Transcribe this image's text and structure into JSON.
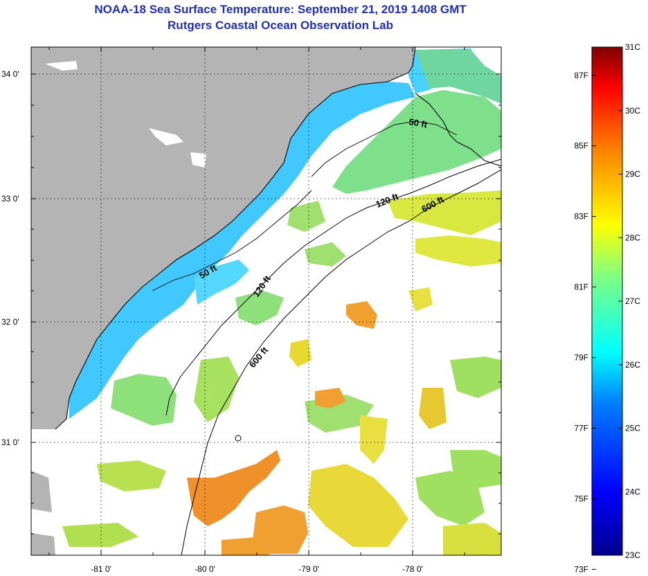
{
  "title": "NOAA-18 Sea Surface Temperature:  September 21, 2019 1408 GMT",
  "subtitle": "Rutgers Coastal Ocean Observation Lab",
  "lon_ticks": [
    "-81 0'",
    "-80 0'",
    "-79 0'",
    "-78 0'"
  ],
  "lat_ticks": [
    "34 0'",
    "33 0'",
    "32 0'",
    "31 0'"
  ],
  "contour_labels": [
    "50 ft",
    "120 ft",
    "600 ft",
    "50 ft",
    "120 ft",
    "600 ft"
  ],
  "colorbar": {
    "celsius": [
      "31C",
      "30C",
      "29C",
      "28C",
      "27C",
      "26C",
      "25C",
      "24C",
      "23C"
    ],
    "fahrenheit": [
      "87F",
      "85F",
      "83F",
      "81F",
      "79F",
      "77F",
      "75F",
      "73F"
    ],
    "colors": [
      "#00008f",
      "#0000ff",
      "#0080ff",
      "#00ffff",
      "#80ff80",
      "#ffff00",
      "#ff8000",
      "#ff0000",
      "#800000"
    ]
  },
  "colors": {
    "land": "#b4b4b4",
    "title": "#1f2fb0",
    "coastal_water": "#33ccff",
    "shelf_green": "#8fe07a",
    "warm_yellow": "#e8e830",
    "warm_orange": "#f08020"
  }
}
